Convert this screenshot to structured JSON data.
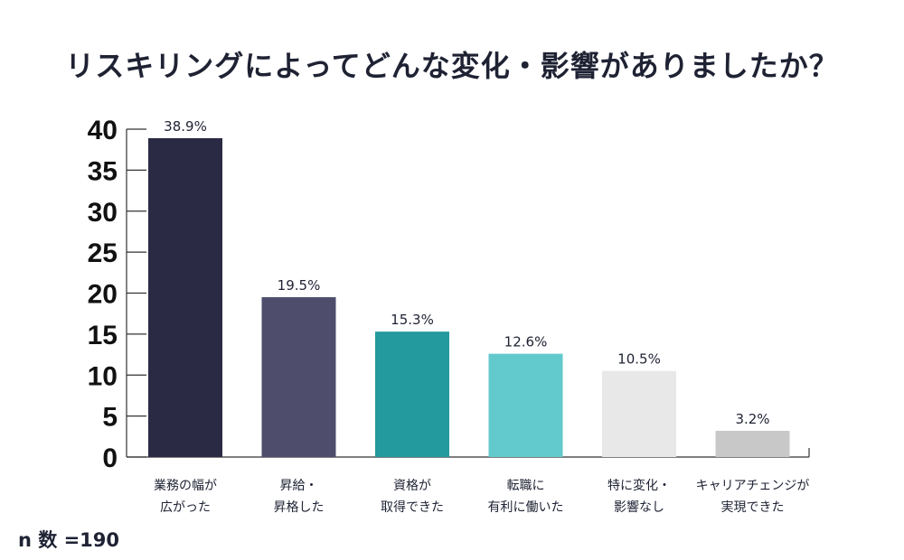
{
  "chart_data": {
    "type": "bar",
    "title": "リスキリングによってどんな変化・影響がありましたか？",
    "categories": [
      [
        "業務の幅が",
        "広がった"
      ],
      [
        "昇給・",
        "昇格した"
      ],
      [
        "資格が",
        "取得できた"
      ],
      [
        "転職に",
        "有利に働いた"
      ],
      [
        "特に変化・",
        "影響なし"
      ],
      [
        "キャリアチェンジが",
        "実現できた"
      ]
    ],
    "values": [
      38.9,
      19.5,
      15.3,
      12.6,
      10.5,
      3.2
    ],
    "value_labels": [
      "38.9%",
      "19.5%",
      "15.3%",
      "12.6%",
      "10.5%",
      "3.2%"
    ],
    "colors": [
      "#2a2a44",
      "#4e4d6c",
      "#229a9e",
      "#62c9cd",
      "#e8e8e8",
      "#c8c8c8"
    ],
    "ylim": [
      0,
      40
    ],
    "yticks": [
      "0",
      "5",
      "10",
      "15",
      "20",
      "25",
      "30",
      "35",
      "40"
    ],
    "xlabel": "",
    "ylabel": "",
    "note": "n 数 =190"
  }
}
